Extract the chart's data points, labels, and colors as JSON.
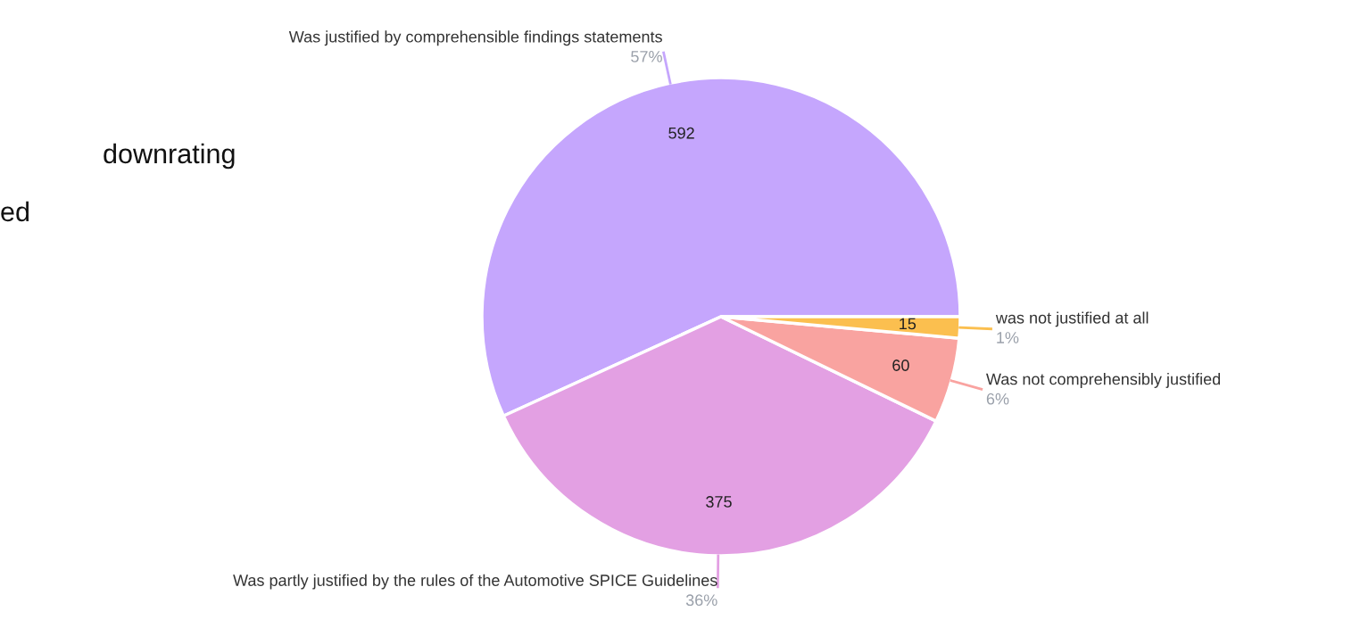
{
  "chart_data": {
    "type": "pie",
    "categories": [
      "Was justified by comprehensible findings statements",
      "Was partly justified by the rules of the Automotive SPICE Guidelines",
      "Was not comprehensibly justified",
      "was not justified at all"
    ],
    "values": [
      592,
      375,
      60,
      15
    ],
    "colors": [
      "#c5a6fd",
      "#e3a0e3",
      "#f9a3a0",
      "#fbbf4f"
    ],
    "value_labels": [
      "592",
      "375",
      "60",
      "15"
    ],
    "annotations": [
      "downrating",
      "ed",
      {
        "text": "57%",
        "x": "Was justified by comprehensible findings statements"
      },
      {
        "text": "36%",
        "x": "Was partly justified by the rules of the Automotive SPICE Guidelines"
      },
      {
        "text": "6%",
        "x": "Was not comprehensibly justified"
      },
      {
        "text": "1%",
        "x": "was not justified at all"
      }
    ]
  }
}
